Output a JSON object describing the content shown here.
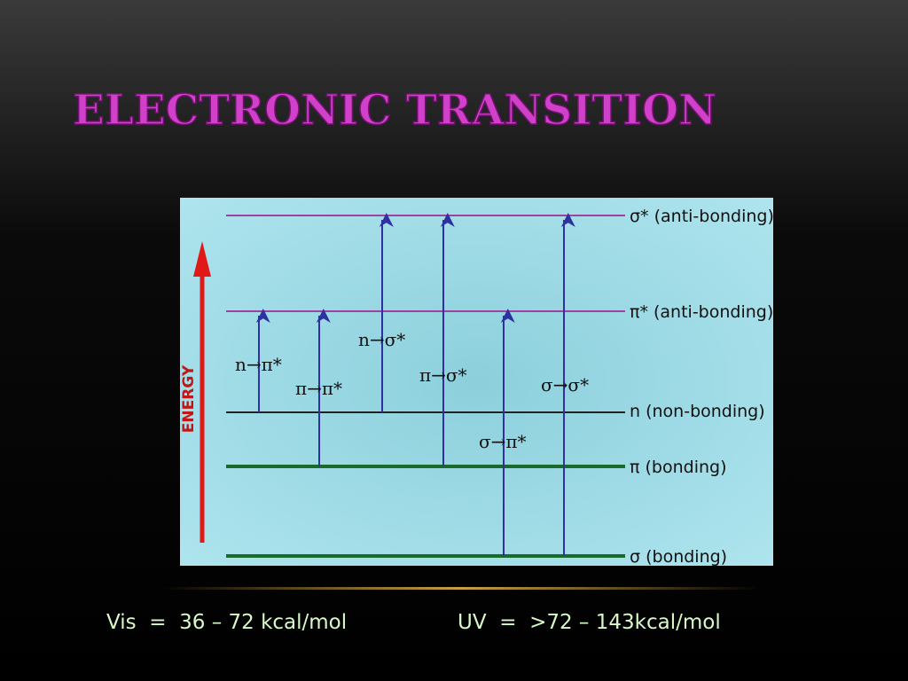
{
  "title": "ELECTRONIC TRANSITION",
  "diagram": {
    "axis_label": "ENERGY",
    "levels": [
      {
        "symbol": "σ*",
        "desc": "(anti-bonding)"
      },
      {
        "symbol": "π*",
        "desc": "(anti-bonding)"
      },
      {
        "symbol": "n",
        "desc": "(non-bonding)"
      },
      {
        "symbol": "π",
        "desc": "(bonding)"
      },
      {
        "symbol": "σ",
        "desc": "(bonding)"
      }
    ],
    "transitions": [
      "n→π*",
      "π→π*",
      "n→σ*",
      "π→σ*",
      "σ→π*",
      "σ→σ*"
    ]
  },
  "footer": {
    "vis": "Vis  =  36 – 72 kcal/mol",
    "uv": "UV  =  >72 – 143kcal/mol"
  }
}
